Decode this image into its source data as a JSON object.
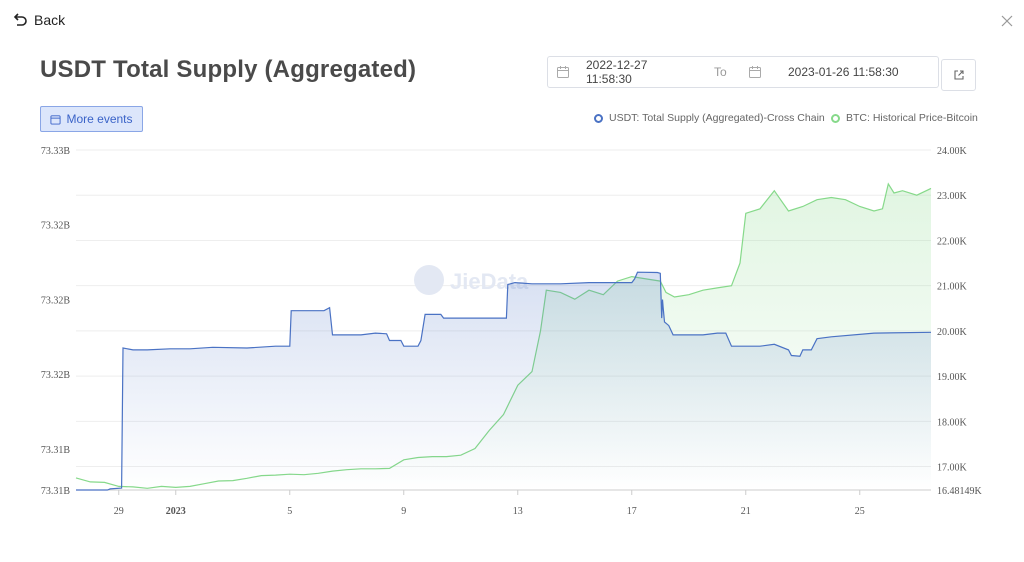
{
  "header": {
    "back_label": "Back",
    "title": "USDT Total Supply (Aggregated)"
  },
  "date_range": {
    "start": "2022-12-27 11:58:30",
    "separator": "To",
    "end": "2023-01-26 11:58:30"
  },
  "toolbar": {
    "more_events_label": "More events"
  },
  "watermark": "JieData",
  "colors": {
    "usdt": "#4a72c4",
    "btc": "#86d98a",
    "accent": "#3a63c8"
  },
  "chart_data": {
    "type": "line",
    "x_ticks": [
      {
        "label": "29",
        "day": 29,
        "bold": false
      },
      {
        "label": "2023",
        "day": 31,
        "bold": true
      },
      {
        "label": "5",
        "day": 35,
        "bold": false
      },
      {
        "label": "9",
        "day": 39,
        "bold": false
      },
      {
        "label": "13",
        "day": 43,
        "bold": false
      },
      {
        "label": "17",
        "day": 47,
        "bold": false
      },
      {
        "label": "21",
        "day": 51,
        "bold": false
      },
      {
        "label": "25",
        "day": 55,
        "bold": false
      }
    ],
    "xlim": [
      27.5,
      57.5
    ],
    "left_axis": {
      "ticks": [
        "73.33B",
        "73.32B",
        "73.32B",
        "73.32B",
        "73.31B",
        "73.31B"
      ],
      "tick_values": [
        73.328,
        73.326,
        73.324,
        73.322,
        73.32,
        73.3189
      ],
      "ylim": [
        73.3189,
        73.328
      ]
    },
    "right_axis": {
      "ticks": [
        "24.00K",
        "23.00K",
        "22.00K",
        "21.00K",
        "20.00K",
        "19.00K",
        "18.00K",
        "17.00K",
        "16.48149K"
      ],
      "tick_values": [
        24000,
        23000,
        22000,
        21000,
        20000,
        19000,
        18000,
        17000,
        16481.49
      ],
      "ylim": [
        16481.49,
        24000
      ]
    },
    "series": [
      {
        "name": "USDT: Total Supply (Aggregated)-Cross Chain",
        "axis": "left",
        "points": [
          [
            27.5,
            73.3189
          ],
          [
            28.6,
            73.3189
          ],
          [
            28.7,
            73.31893
          ],
          [
            29.1,
            73.31895
          ],
          [
            29.15,
            73.3227
          ],
          [
            29.5,
            73.32265
          ],
          [
            30.0,
            73.32265
          ],
          [
            30.8,
            73.32268
          ],
          [
            31.5,
            73.32268
          ],
          [
            32.3,
            73.32272
          ],
          [
            33.5,
            73.3227
          ],
          [
            34.5,
            73.32275
          ],
          [
            35.0,
            73.32275
          ],
          [
            35.05,
            73.3237
          ],
          [
            36.2,
            73.3237
          ],
          [
            36.4,
            73.32378
          ],
          [
            36.5,
            73.32305
          ],
          [
            37.5,
            73.32305
          ],
          [
            38.0,
            73.3231
          ],
          [
            38.4,
            73.32308
          ],
          [
            38.5,
            73.3229
          ],
          [
            38.9,
            73.3229
          ],
          [
            39.0,
            73.32275
          ],
          [
            39.5,
            73.32275
          ],
          [
            39.6,
            73.3229
          ],
          [
            39.75,
            73.3236
          ],
          [
            40.3,
            73.3236
          ],
          [
            40.4,
            73.3235
          ],
          [
            41.1,
            73.3235
          ],
          [
            41.5,
            73.3235
          ],
          [
            42.1,
            73.3235
          ],
          [
            42.6,
            73.3235
          ],
          [
            42.65,
            73.3244
          ],
          [
            42.9,
            73.32445
          ],
          [
            43.5,
            73.32442
          ],
          [
            44.5,
            73.32442
          ],
          [
            45.5,
            73.32445
          ],
          [
            46.5,
            73.32445
          ],
          [
            47.0,
            73.32445
          ],
          [
            47.1,
            73.32455
          ],
          [
            47.2,
            73.32473
          ],
          [
            47.9,
            73.32472
          ],
          [
            48.0,
            73.3247
          ],
          [
            48.05,
            73.3235
          ],
          [
            48.08,
            73.324
          ],
          [
            48.1,
            73.3238
          ],
          [
            48.15,
            73.3234
          ],
          [
            48.3,
            73.3233
          ],
          [
            48.45,
            73.32305
          ],
          [
            49.5,
            73.32305
          ],
          [
            50.0,
            73.3231
          ],
          [
            50.3,
            73.3231
          ],
          [
            50.5,
            73.32275
          ],
          [
            51.5,
            73.32275
          ],
          [
            52.0,
            73.3228
          ],
          [
            52.5,
            73.32265
          ],
          [
            52.6,
            73.3225
          ],
          [
            52.9,
            73.32248
          ],
          [
            53.0,
            73.32265
          ],
          [
            53.3,
            73.32265
          ],
          [
            53.5,
            73.32295
          ],
          [
            54.0,
            73.323
          ],
          [
            55.5,
            73.3231
          ],
          [
            57.5,
            73.32312
          ]
        ]
      },
      {
        "name": "BTC: Historical Price-Bitcoin",
        "axis": "right",
        "points": [
          [
            27.5,
            16750
          ],
          [
            28.0,
            16660
          ],
          [
            28.5,
            16650
          ],
          [
            29.0,
            16560
          ],
          [
            29.5,
            16550
          ],
          [
            30.0,
            16520
          ],
          [
            30.5,
            16560
          ],
          [
            31.0,
            16540
          ],
          [
            31.5,
            16560
          ],
          [
            32.0,
            16620
          ],
          [
            32.5,
            16680
          ],
          [
            33.0,
            16690
          ],
          [
            33.5,
            16740
          ],
          [
            34.0,
            16800
          ],
          [
            34.5,
            16810
          ],
          [
            35.0,
            16830
          ],
          [
            35.5,
            16820
          ],
          [
            36.0,
            16850
          ],
          [
            36.5,
            16900
          ],
          [
            37.0,
            16930
          ],
          [
            37.5,
            16950
          ],
          [
            38.0,
            16950
          ],
          [
            38.5,
            16960
          ],
          [
            39.0,
            17150
          ],
          [
            39.5,
            17200
          ],
          [
            40.0,
            17220
          ],
          [
            40.5,
            17220
          ],
          [
            41.0,
            17250
          ],
          [
            41.5,
            17400
          ],
          [
            42.0,
            17800
          ],
          [
            42.5,
            18150
          ],
          [
            43.0,
            18800
          ],
          [
            43.5,
            19100
          ],
          [
            43.8,
            20000
          ],
          [
            44.0,
            20900
          ],
          [
            44.5,
            20850
          ],
          [
            45.0,
            20700
          ],
          [
            45.5,
            20900
          ],
          [
            46.0,
            20800
          ],
          [
            46.5,
            21100
          ],
          [
            47.0,
            21200
          ],
          [
            47.5,
            21150
          ],
          [
            48.0,
            21100
          ],
          [
            48.2,
            20850
          ],
          [
            48.5,
            20750
          ],
          [
            49.0,
            20800
          ],
          [
            49.5,
            20900
          ],
          [
            50.0,
            20950
          ],
          [
            50.5,
            21000
          ],
          [
            50.8,
            21500
          ],
          [
            51.0,
            22600
          ],
          [
            51.5,
            22700
          ],
          [
            52.0,
            23100
          ],
          [
            52.5,
            22650
          ],
          [
            53.0,
            22750
          ],
          [
            53.5,
            22900
          ],
          [
            54.0,
            22950
          ],
          [
            54.5,
            22900
          ],
          [
            55.0,
            22750
          ],
          [
            55.5,
            22650
          ],
          [
            55.8,
            22700
          ],
          [
            56.0,
            23250
          ],
          [
            56.2,
            23050
          ],
          [
            56.5,
            23100
          ],
          [
            57.0,
            23000
          ],
          [
            57.5,
            23150
          ]
        ]
      }
    ]
  }
}
